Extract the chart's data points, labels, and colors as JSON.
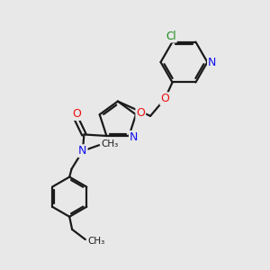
{
  "bg_color": "#e8e8e8",
  "bond_color": "#1a1a1a",
  "bond_width": 1.6,
  "atom_colors": {
    "C": "#1a1a1a",
    "N": "#1010ee",
    "O": "#ee1010",
    "Cl": "#1a8a1a",
    "H": "#1a1a1a"
  },
  "font_size": 8.5,
  "fig_size": [
    3.0,
    3.0
  ],
  "dpi": 100
}
